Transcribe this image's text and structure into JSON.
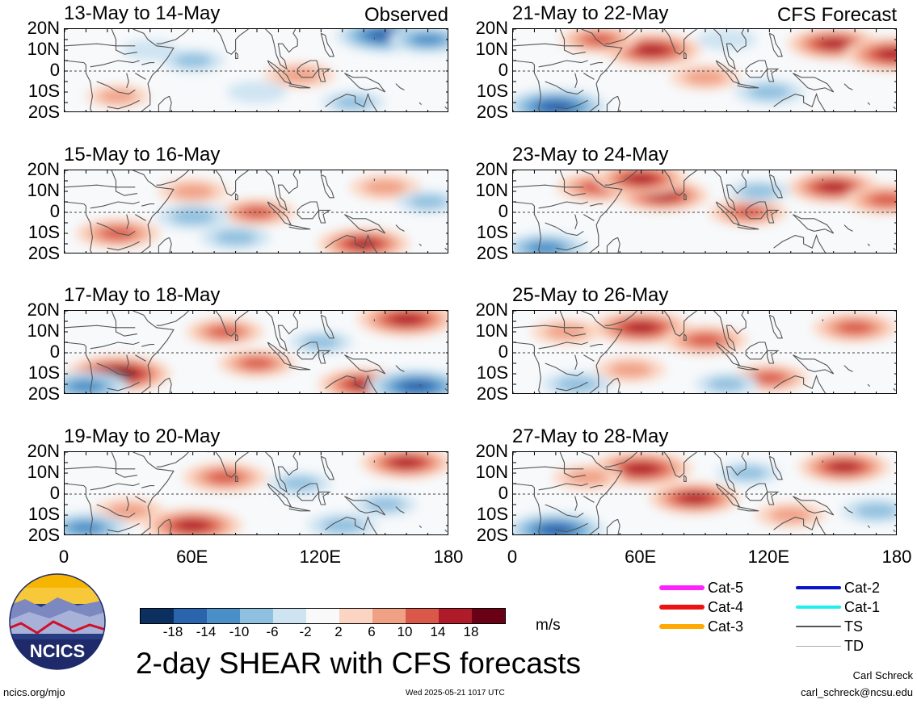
{
  "panels": [
    {
      "title": "13-May to 14-May",
      "tag": "Observed"
    },
    {
      "title": "21-May to 22-May",
      "tag": "CFS Forecast"
    },
    {
      "title": "15-May to 16-May",
      "tag": ""
    },
    {
      "title": "23-May to 24-May",
      "tag": ""
    },
    {
      "title": "17-May to 18-May",
      "tag": ""
    },
    {
      "title": "25-May to 26-May",
      "tag": ""
    },
    {
      "title": "19-May to 20-May",
      "tag": ""
    },
    {
      "title": "27-May to 28-May",
      "tag": ""
    }
  ],
  "lat_labels": [
    "20N",
    "10N",
    "0",
    "10S",
    "20S"
  ],
  "lon_labels": [
    "0",
    "60E",
    "120E",
    "180"
  ],
  "colorbar": {
    "ticks": [
      "-18",
      "-14",
      "-10",
      "-6",
      "-2",
      "2",
      "6",
      "10",
      "14",
      "18"
    ],
    "colors": [
      "#0b2f5e",
      "#2a64ad",
      "#4a8fc7",
      "#8fc0df",
      "#cfe4f2",
      "#f9f9f9",
      "#fbd5c2",
      "#f0a085",
      "#d9584a",
      "#b01b2a",
      "#6a0015"
    ],
    "units": "m/s"
  },
  "legend": [
    {
      "label": "Cat-5",
      "color": "#ff22ff",
      "width": 6
    },
    {
      "label": "Cat-4",
      "color": "#ee1111",
      "width": 6
    },
    {
      "label": "Cat-3",
      "color": "#ffaa00",
      "width": 6
    },
    {
      "label": "Cat-2",
      "color": "#0a14c8",
      "width": 4
    },
    {
      "label": "Cat-1",
      "color": "#22eeee",
      "width": 4
    },
    {
      "label": "TS",
      "color": "#555555",
      "width": 2
    },
    {
      "label": "TD",
      "color": "#aaaaaa",
      "width": 1
    }
  ],
  "logo_text": "NCICS",
  "main_title": "2-day SHEAR with CFS forecasts",
  "footer": {
    "url": "ncics.org/mjo",
    "timestamp": "Wed 2025-05-21 1017 UTC",
    "author": "Carl Schreck",
    "email": "carl_schreck@ncsu.edu"
  },
  "chart_data": {
    "type": "heatmap",
    "variable": "SHEAR",
    "units": "m/s",
    "domain": {
      "lon_range": [
        0,
        180
      ],
      "lat_range": [
        -20,
        20
      ]
    },
    "xticks": [
      "0",
      "60E",
      "120E",
      "180"
    ],
    "yticks": [
      "20N",
      "10N",
      "0",
      "10S",
      "20S"
    ],
    "contour_levels": [
      -18,
      -14,
      -10,
      -6,
      -2,
      2,
      6,
      10,
      14,
      18
    ],
    "panels": [
      {
        "period": "13-May to 14-May",
        "source": "Observed",
        "blobs": [
          {
            "lon": 150,
            "lat": 17,
            "value": -16
          },
          {
            "lon": 170,
            "lat": 15,
            "value": -10
          },
          {
            "lon": 110,
            "lat": -2,
            "value": 8
          },
          {
            "lon": 60,
            "lat": 5,
            "value": -6
          },
          {
            "lon": 25,
            "lat": -12,
            "value": 6
          },
          {
            "lon": 135,
            "lat": -15,
            "value": -6
          },
          {
            "lon": 90,
            "lat": -10,
            "value": -5
          },
          {
            "lon": 40,
            "lat": 10,
            "value": -4
          }
        ]
      },
      {
        "period": "21-May to 22-May",
        "source": "CFS Forecast",
        "blobs": [
          {
            "lon": 65,
            "lat": 10,
            "value": 16
          },
          {
            "lon": 40,
            "lat": 15,
            "value": 10
          },
          {
            "lon": 150,
            "lat": 13,
            "value": 14
          },
          {
            "lon": 178,
            "lat": 8,
            "value": 16
          },
          {
            "lon": 20,
            "lat": -17,
            "value": -17
          },
          {
            "lon": 120,
            "lat": -10,
            "value": -8
          },
          {
            "lon": 90,
            "lat": -3,
            "value": 8
          },
          {
            "lon": 100,
            "lat": 15,
            "value": -5
          }
        ]
      },
      {
        "period": "15-May to 16-May",
        "source": "",
        "blobs": [
          {
            "lon": 25,
            "lat": -10,
            "value": 12
          },
          {
            "lon": 60,
            "lat": 10,
            "value": 8
          },
          {
            "lon": 90,
            "lat": 0,
            "value": 10
          },
          {
            "lon": 140,
            "lat": -15,
            "value": 14
          },
          {
            "lon": 60,
            "lat": -2,
            "value": -9
          },
          {
            "lon": 150,
            "lat": 12,
            "value": 8
          },
          {
            "lon": 80,
            "lat": -12,
            "value": -8
          },
          {
            "lon": 170,
            "lat": 5,
            "value": -6
          }
        ]
      },
      {
        "period": "23-May to 24-May",
        "source": "",
        "blobs": [
          {
            "lon": 40,
            "lat": 12,
            "value": 12
          },
          {
            "lon": 70,
            "lat": 8,
            "value": 14
          },
          {
            "lon": 60,
            "lat": 16,
            "value": 14
          },
          {
            "lon": 150,
            "lat": 12,
            "value": 14
          },
          {
            "lon": 175,
            "lat": 6,
            "value": 12
          },
          {
            "lon": 110,
            "lat": 0,
            "value": 10
          },
          {
            "lon": 15,
            "lat": -17,
            "value": -12
          },
          {
            "lon": 115,
            "lat": 10,
            "value": -6
          }
        ]
      },
      {
        "period": "17-May to 18-May",
        "source": "",
        "blobs": [
          {
            "lon": 25,
            "lat": -10,
            "value": 18
          },
          {
            "lon": 160,
            "lat": 16,
            "value": 16
          },
          {
            "lon": 75,
            "lat": 10,
            "value": 10
          },
          {
            "lon": 140,
            "lat": -15,
            "value": 14
          },
          {
            "lon": 90,
            "lat": -5,
            "value": 10
          },
          {
            "lon": 165,
            "lat": -16,
            "value": -16
          },
          {
            "lon": 10,
            "lat": -16,
            "value": -12
          },
          {
            "lon": 120,
            "lat": 5,
            "value": -6
          }
        ]
      },
      {
        "period": "25-May to 26-May",
        "source": "",
        "blobs": [
          {
            "lon": 60,
            "lat": 12,
            "value": 16
          },
          {
            "lon": 25,
            "lat": 10,
            "value": 8
          },
          {
            "lon": 90,
            "lat": 6,
            "value": 12
          },
          {
            "lon": 160,
            "lat": 12,
            "value": 12
          },
          {
            "lon": 55,
            "lat": -8,
            "value": 8
          },
          {
            "lon": 120,
            "lat": -12,
            "value": 10
          },
          {
            "lon": 30,
            "lat": -15,
            "value": -8
          },
          {
            "lon": 100,
            "lat": -15,
            "value": -6
          }
        ]
      },
      {
        "period": "19-May to 20-May",
        "source": "",
        "blobs": [
          {
            "lon": 160,
            "lat": 15,
            "value": 14
          },
          {
            "lon": 60,
            "lat": -15,
            "value": 16
          },
          {
            "lon": 30,
            "lat": -8,
            "value": 8
          },
          {
            "lon": 75,
            "lat": 8,
            "value": 12
          },
          {
            "lon": 10,
            "lat": -16,
            "value": -12
          },
          {
            "lon": 130,
            "lat": -15,
            "value": -8
          },
          {
            "lon": 110,
            "lat": 5,
            "value": -6
          },
          {
            "lon": 150,
            "lat": -5,
            "value": -6
          }
        ]
      },
      {
        "period": "27-May to 28-May",
        "source": "",
        "blobs": [
          {
            "lon": 60,
            "lat": 12,
            "value": 17
          },
          {
            "lon": 85,
            "lat": -2,
            "value": 14
          },
          {
            "lon": 155,
            "lat": 13,
            "value": 14
          },
          {
            "lon": 35,
            "lat": 8,
            "value": 8
          },
          {
            "lon": 130,
            "lat": -10,
            "value": 8
          },
          {
            "lon": 20,
            "lat": -17,
            "value": -16
          },
          {
            "lon": 110,
            "lat": 10,
            "value": -6
          },
          {
            "lon": 170,
            "lat": -8,
            "value": -8
          }
        ]
      }
    ]
  }
}
